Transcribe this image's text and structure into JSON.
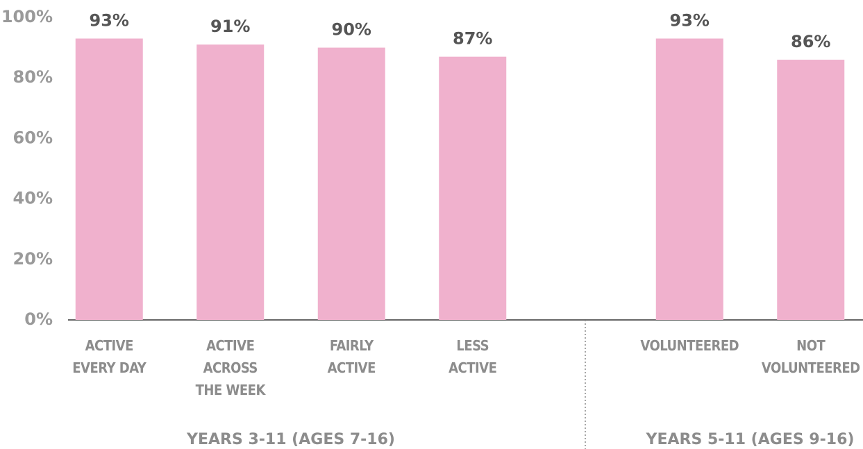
{
  "chart_data": {
    "type": "bar",
    "color": "#f0b1cd",
    "ylim": [
      0,
      100
    ],
    "yticks": [
      {
        "value": 0,
        "label": "0%"
      },
      {
        "value": 20,
        "label": "20%"
      },
      {
        "value": 40,
        "label": "40%"
      },
      {
        "value": 60,
        "label": "60%"
      },
      {
        "value": 80,
        "label": "80%"
      },
      {
        "value": 100,
        "label": "100%"
      }
    ],
    "groups": [
      {
        "label": "YEARS 3-11 (AGES 7-16)",
        "categories": [
          "ACTIVE\nEVERY DAY",
          "ACTIVE\nACROSS\nTHE WEEK",
          "FAIRLY\nACTIVE",
          "LESS\nACTIVE"
        ],
        "values": [
          93,
          91,
          90,
          87
        ],
        "value_labels": [
          "93%",
          "91%",
          "90%",
          "87%"
        ]
      },
      {
        "label": "YEARS 5-11 (AGES 9-16)",
        "categories": [
          "VOLUNTEERED",
          "NOT\nVOLUNTEERED"
        ],
        "values": [
          93,
          86
        ],
        "value_labels": [
          "93%",
          "86%"
        ]
      }
    ]
  }
}
